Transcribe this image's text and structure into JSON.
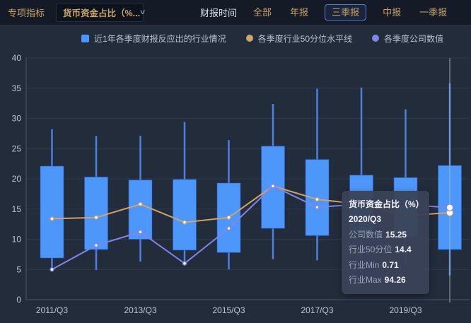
{
  "toolbar": {
    "indicator_label": "专项指标",
    "dropdown": {
      "value": "货币资金占比（%...",
      "chevron_icon": "∨"
    },
    "report_time_label": "财报时间",
    "tabs": [
      {
        "name": "tab-all",
        "label": "全部",
        "selected": false
      },
      {
        "name": "tab-annual",
        "label": "年报",
        "selected": false
      },
      {
        "name": "tab-q3",
        "label": "三季报",
        "selected": true
      },
      {
        "name": "tab-interim",
        "label": "中报",
        "selected": false
      },
      {
        "name": "tab-q1",
        "label": "一季报",
        "selected": false
      }
    ]
  },
  "legend": [
    {
      "name": "legend-industry-range",
      "label": "近1年各季度财报反应出的行业情况",
      "marker": "square",
      "color": "#4d97fb"
    },
    {
      "name": "legend-industry-median",
      "label": "各季度行业50分位水平线",
      "marker": "circle",
      "color": "#cfa36b"
    },
    {
      "name": "legend-company-value",
      "label": "各季度公司数值",
      "marker": "circle",
      "color": "#8284e6"
    }
  ],
  "chart_data": {
    "type": "boxplot+line",
    "x": [
      "2011/Q3",
      "2012/Q3",
      "2013/Q3",
      "2014/Q3",
      "2015/Q3",
      "2016/Q3",
      "2017/Q3",
      "2018/Q3",
      "2019/Q3",
      "2020/Q3"
    ],
    "x_axis_tick_labels": [
      "2011/Q3",
      "2013/Q3",
      "2015/Q3",
      "2017/Q3",
      "2019/Q3"
    ],
    "ylim": [
      0,
      40
    ],
    "y_ticks": [
      0,
      5,
      10,
      15,
      20,
      25,
      30,
      35,
      40
    ],
    "grid": true,
    "legend_position": "top",
    "box_color": "#4d97fb",
    "whisker_color": "#4a80e0",
    "boxes": [
      {
        "low": 5.4,
        "q1": 6.9,
        "q3": 22.1,
        "high": 28.2
      },
      {
        "low": 4.9,
        "q1": 8.3,
        "q3": 20.3,
        "high": 27.1
      },
      {
        "low": 6.3,
        "q1": 10.0,
        "q3": 19.8,
        "high": 27.1
      },
      {
        "low": 5.7,
        "q1": 8.2,
        "q3": 19.9,
        "high": 29.4
      },
      {
        "low": 5.0,
        "q1": 7.8,
        "q3": 19.3,
        "high": 26.4
      },
      {
        "low": 6.7,
        "q1": 11.8,
        "q3": 25.4,
        "high": 32.4
      },
      {
        "low": 6.5,
        "q1": 10.6,
        "q3": 23.2,
        "high": 34.9
      },
      {
        "low": 6.5,
        "q1": 11.0,
        "q3": 20.6,
        "high": 35.1
      },
      {
        "low": 6.0,
        "q1": 10.5,
        "q3": 20.2,
        "high": 31.5
      },
      {
        "low": 4.0,
        "q1": 8.3,
        "q3": 22.2,
        "high": 35.8
      }
    ],
    "series": [
      {
        "name": "各季度行业50分位水平线",
        "color": "#cfa36b",
        "values": [
          13.4,
          13.6,
          15.8,
          12.8,
          13.6,
          18.8,
          16.6,
          15.8,
          13.9,
          14.4
        ]
      },
      {
        "name": "各季度公司数值",
        "color": "#8284e6",
        "values": [
          5.0,
          9.0,
          11.2,
          6.0,
          11.8,
          18.8,
          15.3,
          15.8,
          15.7,
          15.25
        ]
      }
    ],
    "crosshair_index": 9
  },
  "tooltip": {
    "title": "货币资金占比（%）",
    "period": "2020/Q3",
    "rows": [
      {
        "label": "公司数值",
        "value": "15.25"
      },
      {
        "label": "行业50分位",
        "value": "14.4"
      },
      {
        "label": "行业Min",
        "value": "0.71"
      },
      {
        "label": "行业Max",
        "value": "94.26"
      }
    ]
  },
  "colors": {
    "topbar_bg": "#151b26",
    "page_bg": "#222c3b",
    "gold": "#c9a46a",
    "selected_tab_border": "#4f7fe0",
    "grid_line": "#2e3a4e",
    "axis_line": "#47546e",
    "tick_label": "#bcc7d8",
    "crosshair": "#aab3c2",
    "tooltip_bg": "rgba(58,67,88,0.96)"
  }
}
